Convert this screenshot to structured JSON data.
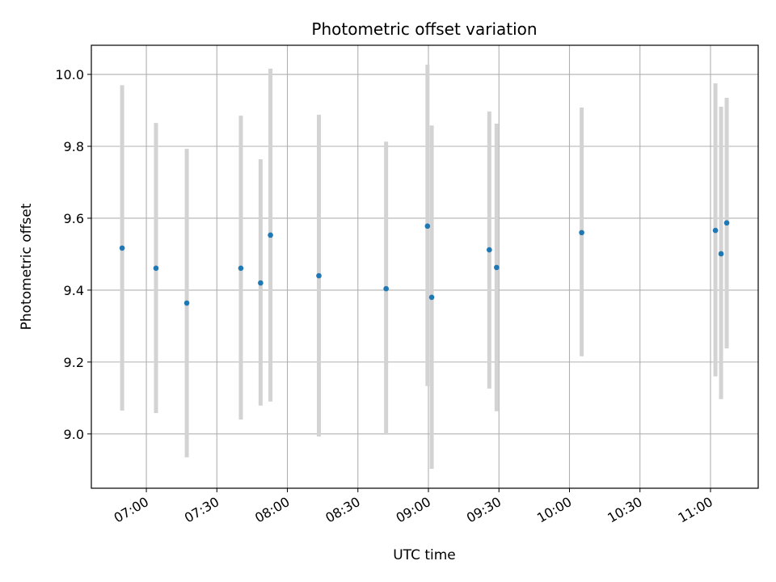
{
  "chart_data": {
    "type": "scatter",
    "title": "Photometric offset variation",
    "xlabel": "UTC time",
    "ylabel": "Photometric offset",
    "xlim": [
      "06:36.6",
      "11:20.3"
    ],
    "ylim": [
      8.849,
      10.081
    ],
    "grid": true,
    "xticks": [
      "07:00",
      "07:30",
      "08:00",
      "08:30",
      "09:00",
      "09:30",
      "10:00",
      "10:30",
      "11:00"
    ],
    "yticks": [
      "9.0",
      "9.2",
      "9.4",
      "9.6",
      "9.8",
      "10.0"
    ],
    "point_color": "#1f77b4",
    "errorbar_color": "#d3d3d3",
    "points": [
      {
        "time": "06:49.7",
        "value": 9.517,
        "low": 9.065,
        "high": 9.97
      },
      {
        "time": "07:04.1",
        "value": 9.461,
        "low": 9.058,
        "high": 9.865
      },
      {
        "time": "07:17.2",
        "value": 9.364,
        "low": 8.935,
        "high": 9.793
      },
      {
        "time": "07:40.2",
        "value": 9.461,
        "low": 9.04,
        "high": 9.885
      },
      {
        "time": "07:48.6",
        "value": 9.42,
        "low": 9.079,
        "high": 9.764
      },
      {
        "time": "07:52.8",
        "value": 9.553,
        "low": 9.09,
        "high": 10.016
      },
      {
        "time": "08:13.4",
        "value": 9.44,
        "low": 8.993,
        "high": 9.888
      },
      {
        "time": "08:42.0",
        "value": 9.404,
        "low": 8.998,
        "high": 9.813
      },
      {
        "time": "08:59.6",
        "value": 9.578,
        "low": 9.133,
        "high": 10.027
      },
      {
        "time": "09:01.4",
        "value": 9.38,
        "low": 8.903,
        "high": 9.858
      },
      {
        "time": "09:25.9",
        "value": 9.512,
        "low": 9.126,
        "high": 9.897
      },
      {
        "time": "09:29.0",
        "value": 9.463,
        "low": 9.063,
        "high": 9.863
      },
      {
        "time": "10:05.2",
        "value": 9.56,
        "low": 9.216,
        "high": 9.908
      },
      {
        "time": "11:02.1",
        "value": 9.566,
        "low": 9.16,
        "high": 9.975
      },
      {
        "time": "11:04.5",
        "value": 9.501,
        "low": 9.097,
        "high": 9.91
      },
      {
        "time": "11:06.9",
        "value": 9.587,
        "low": 9.238,
        "high": 9.935
      }
    ]
  }
}
